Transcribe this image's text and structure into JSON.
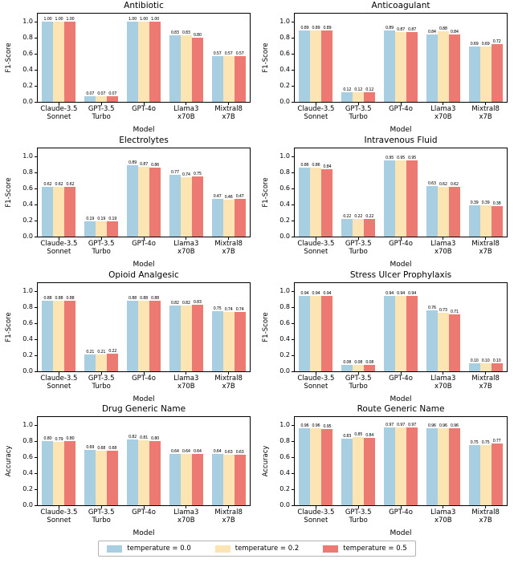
{
  "figure": {
    "xlabel": "Model",
    "ymax": 1.1,
    "yticks": [
      "0.0",
      "0.2",
      "0.4",
      "0.6",
      "0.8",
      "1.0"
    ],
    "categories": [
      [
        "Claude-3.5",
        "Sonnet"
      ],
      [
        "GPT-3.5",
        "Turbo"
      ],
      [
        "GPT-4o"
      ],
      [
        "Llama3",
        "x70B"
      ],
      [
        "Mixtral8",
        "x7B"
      ]
    ],
    "colors": {
      "temp00": "#a8cee2",
      "temp02": "#fce5b2",
      "temp05": "#ec7a72"
    },
    "legend": [
      {
        "label": "temperature = 0.0",
        "color": "#a8cee2"
      },
      {
        "label": "temperature = 0.2",
        "color": "#fce5b2"
      },
      {
        "label": "temperature = 0.5",
        "color": "#ec7a72"
      }
    ]
  },
  "chart_data": [
    {
      "type": "bar",
      "title": "Antibiotic",
      "ylabel": "F1-Score",
      "xlabel": "Model",
      "categories": [
        "Claude-3.5 Sonnet",
        "GPT-3.5 Turbo",
        "GPT-4o",
        "Llama3 x70B",
        "Mixtral8 x7B"
      ],
      "ylim": [
        0,
        1.1
      ],
      "series": [
        {
          "name": "temperature = 0.0",
          "values": [
            1.0,
            0.07,
            1.0,
            0.83,
            0.57
          ]
        },
        {
          "name": "temperature = 0.2",
          "values": [
            1.0,
            0.07,
            1.0,
            0.83,
            0.57
          ]
        },
        {
          "name": "temperature = 0.5",
          "values": [
            1.0,
            0.07,
            1.0,
            0.8,
            0.57
          ]
        }
      ]
    },
    {
      "type": "bar",
      "title": "Anticoagulant",
      "ylabel": "F1-Score",
      "xlabel": "Model",
      "categories": [
        "Claude-3.5 Sonnet",
        "GPT-3.5 Turbo",
        "GPT-4o",
        "Llama3 x70B",
        "Mixtral8 x7B"
      ],
      "ylim": [
        0,
        1.1
      ],
      "series": [
        {
          "name": "temperature = 0.0",
          "values": [
            0.89,
            0.12,
            0.89,
            0.84,
            0.69
          ]
        },
        {
          "name": "temperature = 0.2",
          "values": [
            0.89,
            0.12,
            0.87,
            0.88,
            0.69
          ]
        },
        {
          "name": "temperature = 0.5",
          "values": [
            0.89,
            0.12,
            0.87,
            0.84,
            0.72
          ]
        }
      ]
    },
    {
      "type": "bar",
      "title": "Electrolytes",
      "ylabel": "F1-Score",
      "xlabel": "Model",
      "categories": [
        "Claude-3.5 Sonnet",
        "GPT-3.5 Turbo",
        "GPT-4o",
        "Llama3 x70B",
        "Mixtral8 x7B"
      ],
      "ylim": [
        0,
        1.1
      ],
      "series": [
        {
          "name": "temperature = 0.0",
          "values": [
            0.62,
            0.19,
            0.89,
            0.77,
            0.47
          ]
        },
        {
          "name": "temperature = 0.2",
          "values": [
            0.62,
            0.19,
            0.87,
            0.74,
            0.46
          ]
        },
        {
          "name": "temperature = 0.5",
          "values": [
            0.62,
            0.19,
            0.86,
            0.75,
            0.47
          ]
        }
      ]
    },
    {
      "type": "bar",
      "title": "Intravenous Fluid",
      "ylabel": "F1-Score",
      "xlabel": "Model",
      "categories": [
        "Claude-3.5 Sonnet",
        "GPT-3.5 Turbo",
        "GPT-4o",
        "Llama3 x70B",
        "Mixtral8 x7B"
      ],
      "ylim": [
        0,
        1.1
      ],
      "series": [
        {
          "name": "temperature = 0.0",
          "values": [
            0.86,
            0.22,
            0.95,
            0.63,
            0.39
          ]
        },
        {
          "name": "temperature = 0.2",
          "values": [
            0.86,
            0.22,
            0.95,
            0.62,
            0.39
          ]
        },
        {
          "name": "temperature = 0.5",
          "values": [
            0.84,
            0.22,
            0.95,
            0.62,
            0.38
          ]
        }
      ]
    },
    {
      "type": "bar",
      "title": "Opioid Analgesic",
      "ylabel": "F1-Score",
      "xlabel": "Model",
      "categories": [
        "Claude-3.5 Sonnet",
        "GPT-3.5 Turbo",
        "GPT-4o",
        "Llama3 x70B",
        "Mixtral8 x7B"
      ],
      "ylim": [
        0,
        1.1
      ],
      "series": [
        {
          "name": "temperature = 0.0",
          "values": [
            0.88,
            0.21,
            0.88,
            0.82,
            0.75
          ]
        },
        {
          "name": "temperature = 0.2",
          "values": [
            0.88,
            0.21,
            0.88,
            0.82,
            0.74
          ]
        },
        {
          "name": "temperature = 0.5",
          "values": [
            0.88,
            0.22,
            0.88,
            0.83,
            0.74
          ]
        }
      ]
    },
    {
      "type": "bar",
      "title": "Stress Ulcer Prophylaxis",
      "ylabel": "F1-Score",
      "xlabel": "Model",
      "categories": [
        "Claude-3.5 Sonnet",
        "GPT-3.5 Turbo",
        "GPT-4o",
        "Llama3 x70B",
        "Mixtral8 x7B"
      ],
      "ylim": [
        0,
        1.1
      ],
      "series": [
        {
          "name": "temperature = 0.0",
          "values": [
            0.94,
            0.08,
            0.94,
            0.76,
            0.1
          ]
        },
        {
          "name": "temperature = 0.2",
          "values": [
            0.94,
            0.08,
            0.94,
            0.73,
            0.1
          ]
        },
        {
          "name": "temperature = 0.5",
          "values": [
            0.94,
            0.08,
            0.94,
            0.71,
            0.1
          ]
        }
      ]
    },
    {
      "type": "bar",
      "title": "Drug Generic Name",
      "ylabel": "Accuracy",
      "xlabel": "Model",
      "categories": [
        "Claude-3.5 Sonnet",
        "GPT-3.5 Turbo",
        "GPT-4o",
        "Llama3 x70B",
        "Mixtral8 x7B"
      ],
      "ylim": [
        0,
        1.1
      ],
      "series": [
        {
          "name": "temperature = 0.0",
          "values": [
            0.8,
            0.69,
            0.82,
            0.64,
            0.64
          ]
        },
        {
          "name": "temperature = 0.2",
          "values": [
            0.79,
            0.68,
            0.81,
            0.64,
            0.63
          ]
        },
        {
          "name": "temperature = 0.5",
          "values": [
            0.8,
            0.68,
            0.8,
            0.64,
            0.63
          ]
        }
      ]
    },
    {
      "type": "bar",
      "title": "Route Generic Name",
      "ylabel": "Accuracy",
      "xlabel": "Model",
      "categories": [
        "Claude-3.5 Sonnet",
        "GPT-3.5 Turbo",
        "GPT-4o",
        "Llama3 x70B",
        "Mixtral8 x7B"
      ],
      "ylim": [
        0,
        1.1
      ],
      "series": [
        {
          "name": "temperature = 0.0",
          "values": [
            0.96,
            0.83,
            0.97,
            0.96,
            0.75
          ]
        },
        {
          "name": "temperature = 0.2",
          "values": [
            0.96,
            0.85,
            0.97,
            0.96,
            0.75
          ]
        },
        {
          "name": "temperature = 0.5",
          "values": [
            0.95,
            0.84,
            0.97,
            0.96,
            0.77
          ]
        }
      ]
    }
  ]
}
